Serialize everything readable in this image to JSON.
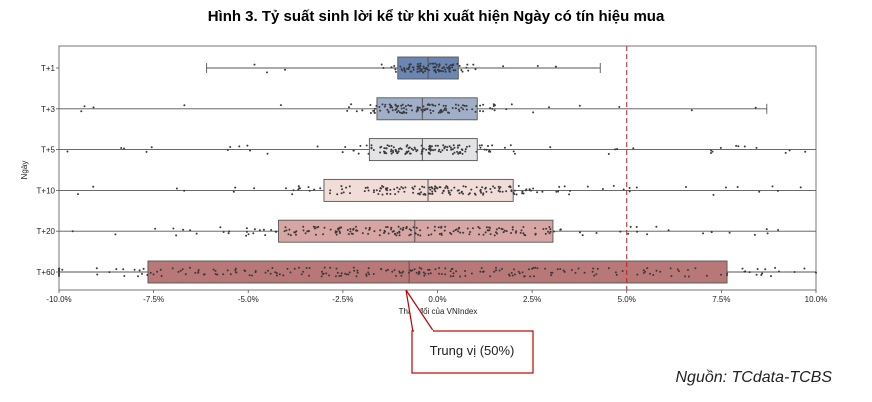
{
  "title": "Hình 3. Tỷ suất sinh lời kể từ khi xuất hiện Ngày có tín hiệu mua",
  "source": "Nguồn: TCdata-TCBS",
  "annotation": {
    "text": "Trung vị (50%)",
    "color": "#c00000"
  },
  "chart_data": {
    "type": "box",
    "orientation": "horizontal",
    "xlabel": "Thay đổi của VNIndex",
    "ylabel": "Ngày",
    "xlim": [
      -10,
      10
    ],
    "xticks": [
      -10,
      -7.5,
      -5,
      -2.5,
      0,
      2.5,
      5,
      7.5,
      10
    ],
    "xtick_labels": [
      "-10.0%",
      "-7.5%",
      "-5.0%",
      "-2.5%",
      "0.0%",
      "2.5%",
      "5.0%",
      "7.5%",
      "10.0%"
    ],
    "reference_line": {
      "x": 5,
      "style": "dashed",
      "color": "#b22222"
    },
    "categories": [
      {
        "label": "T+1",
        "whisker_low": -6.1,
        "q1": -1.05,
        "median": -0.25,
        "q3": 0.55,
        "whisker_high": 4.3,
        "color": "#6b86b3"
      },
      {
        "label": "T+3",
        "whisker_low": -10.0,
        "q1": -1.6,
        "median": -0.4,
        "q3": 1.05,
        "whisker_high": 8.7,
        "color": "#a1aec8"
      },
      {
        "label": "T+5",
        "whisker_low": -10.0,
        "q1": -1.8,
        "median": -0.4,
        "q3": 1.05,
        "whisker_high": 10.0,
        "color": "#e3e2e5"
      },
      {
        "label": "T+10",
        "whisker_low": -10.0,
        "q1": -3.0,
        "median": -0.25,
        "q3": 2.0,
        "whisker_high": 10.0,
        "color": "#f1dcd8"
      },
      {
        "label": "T+20",
        "whisker_low": -10.0,
        "q1": -4.2,
        "median": -0.6,
        "q3": 3.05,
        "whisker_high": 10.0,
        "color": "#d7a5a3"
      },
      {
        "label": "T+60",
        "whisker_low": -10.0,
        "q1": -7.65,
        "median": -0.75,
        "q3": 7.65,
        "whisker_high": 10.0,
        "color": "#b87878"
      }
    ]
  }
}
